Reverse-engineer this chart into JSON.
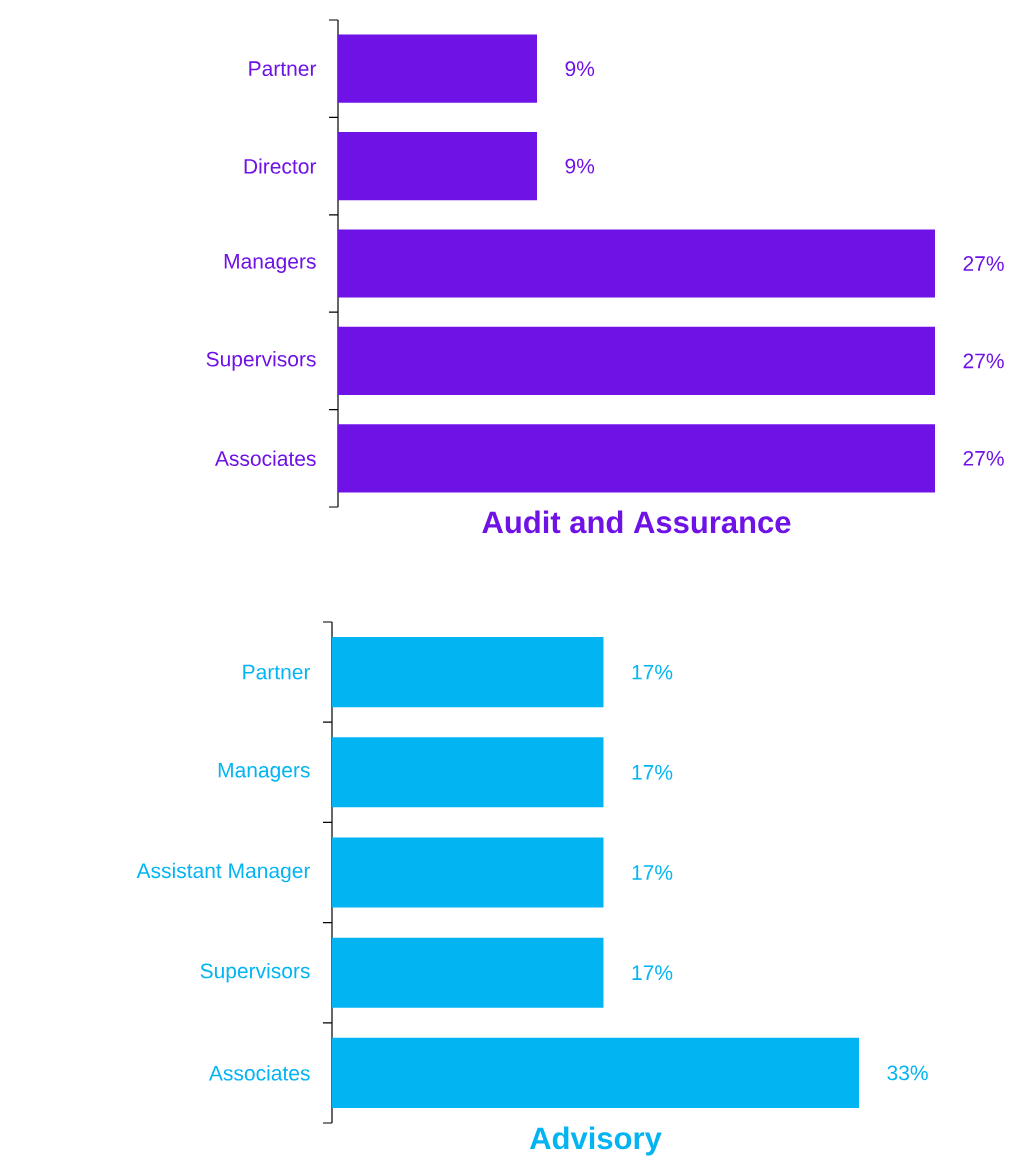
{
  "chart_data": [
    {
      "type": "bar",
      "orientation": "horizontal",
      "title": "Audit and Assurance",
      "color": "#6f12e6",
      "categories": [
        "Partner",
        "Director",
        "Managers",
        "Supervisors",
        "Associates"
      ],
      "values": [
        9,
        9,
        27,
        27,
        27
      ],
      "value_labels": [
        "9%",
        "9%",
        "27%",
        "27%",
        "27%"
      ]
    },
    {
      "type": "bar",
      "orientation": "horizontal",
      "title": "Advisory",
      "color": "#02b4f2",
      "categories": [
        "Partner",
        "Managers",
        "Assistant Manager",
        "Supervisors",
        "Associates"
      ],
      "values": [
        17,
        17,
        17,
        17,
        33
      ],
      "value_labels": [
        "17%",
        "17%",
        "17%",
        "17%",
        "33%"
      ]
    }
  ]
}
